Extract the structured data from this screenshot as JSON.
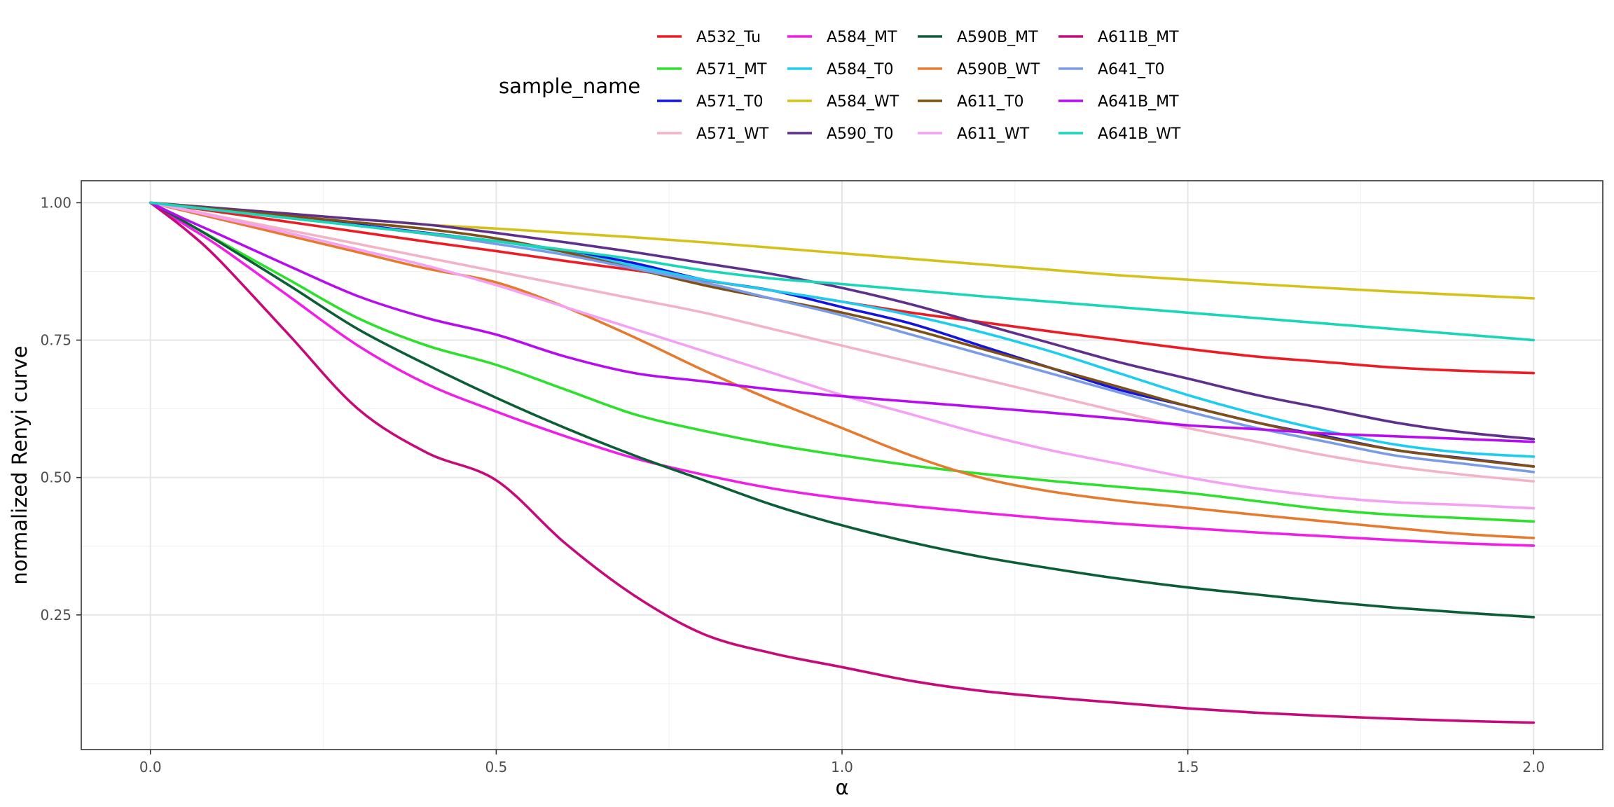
{
  "chart_data": {
    "type": "line",
    "title": "",
    "xlabel": "α",
    "ylabel": "normalized Renyi curve",
    "xlim": [
      -0.1,
      2.1
    ],
    "ylim": [
      0.005,
      1.04
    ],
    "x_ticks": [
      0.0,
      0.5,
      1.0,
      1.5,
      2.0
    ],
    "x_tick_labels": [
      "0.0",
      "0.5",
      "1.0",
      "1.5",
      "2.0"
    ],
    "y_ticks": [
      0.25,
      0.5,
      0.75,
      1.0
    ],
    "y_tick_labels": [
      "0.25",
      "0.50",
      "0.75",
      "1.00"
    ],
    "x_minor_ticks": [
      0.25,
      0.75,
      1.25,
      1.75
    ],
    "y_minor_ticks": [
      0.125,
      0.375,
      0.625,
      0.875
    ],
    "grid": true,
    "legend": {
      "title": "sample_name",
      "position": "top",
      "columns": 4
    },
    "x": [
      0.0,
      0.05,
      0.1,
      0.2,
      0.3,
      0.4,
      0.5,
      0.6,
      0.7,
      0.8,
      0.9,
      1.0,
      1.1,
      1.2,
      1.3,
      1.4,
      1.5,
      1.6,
      1.7,
      1.8,
      1.9,
      2.0
    ],
    "series": [
      {
        "name": "A532_Tu",
        "color": "#ED1C24",
        "values": [
          1.0,
          0.992,
          0.983,
          0.965,
          0.947,
          0.929,
          0.912,
          0.894,
          0.877,
          0.859,
          0.84,
          0.82,
          0.8,
          0.783,
          0.766,
          0.75,
          0.734,
          0.72,
          0.71,
          0.7,
          0.694,
          0.69
        ]
      },
      {
        "name": "A571_MT",
        "color": "#2CE02C",
        "values": [
          1.0,
          0.965,
          0.93,
          0.86,
          0.79,
          0.74,
          0.705,
          0.66,
          0.615,
          0.585,
          0.56,
          0.54,
          0.522,
          0.507,
          0.494,
          0.483,
          0.472,
          0.457,
          0.442,
          0.432,
          0.426,
          0.42
        ]
      },
      {
        "name": "A571_T0",
        "color": "#1414E0",
        "values": [
          1.0,
          0.993,
          0.987,
          0.973,
          0.96,
          0.945,
          0.93,
          0.913,
          0.89,
          0.86,
          0.84,
          0.81,
          0.78,
          0.74,
          0.7,
          0.66,
          0.63,
          0.6,
          0.575,
          0.55,
          0.535,
          0.52
        ]
      },
      {
        "name": "A571_WT",
        "color": "#F2B3C6",
        "values": [
          1.0,
          0.988,
          0.975,
          0.95,
          0.925,
          0.9,
          0.875,
          0.85,
          0.825,
          0.8,
          0.77,
          0.74,
          0.71,
          0.68,
          0.65,
          0.62,
          0.59,
          0.565,
          0.54,
          0.52,
          0.505,
          0.493
        ]
      },
      {
        "name": "A584_MT",
        "color": "#F01EE6",
        "values": [
          1.0,
          0.96,
          0.92,
          0.83,
          0.74,
          0.67,
          0.62,
          0.575,
          0.535,
          0.505,
          0.48,
          0.462,
          0.448,
          0.436,
          0.425,
          0.416,
          0.408,
          0.4,
          0.393,
          0.386,
          0.38,
          0.376
        ]
      },
      {
        "name": "A584_T0",
        "color": "#1CCDF0",
        "values": [
          1.0,
          0.993,
          0.986,
          0.972,
          0.958,
          0.944,
          0.93,
          0.91,
          0.885,
          0.86,
          0.84,
          0.82,
          0.795,
          0.765,
          0.73,
          0.69,
          0.65,
          0.615,
          0.585,
          0.56,
          0.545,
          0.538
        ]
      },
      {
        "name": "A584_WT",
        "color": "#D4C21A",
        "values": [
          1.0,
          0.995,
          0.99,
          0.98,
          0.97,
          0.96,
          0.953,
          0.945,
          0.937,
          0.928,
          0.918,
          0.908,
          0.898,
          0.888,
          0.878,
          0.868,
          0.86,
          0.852,
          0.845,
          0.838,
          0.832,
          0.826
        ]
      },
      {
        "name": "A590_T0",
        "color": "#5E2F8C",
        "values": [
          1.0,
          0.995,
          0.99,
          0.98,
          0.97,
          0.96,
          0.945,
          0.928,
          0.91,
          0.89,
          0.87,
          0.845,
          0.815,
          0.78,
          0.745,
          0.71,
          0.68,
          0.65,
          0.625,
          0.6,
          0.582,
          0.57
        ]
      },
      {
        "name": "A590B_MT",
        "color": "#0B5E36",
        "values": [
          1.0,
          0.965,
          0.928,
          0.85,
          0.77,
          0.705,
          0.645,
          0.59,
          0.54,
          0.495,
          0.45,
          0.413,
          0.382,
          0.356,
          0.335,
          0.316,
          0.3,
          0.287,
          0.274,
          0.263,
          0.254,
          0.246
        ]
      },
      {
        "name": "A590B_WT",
        "color": "#E67A2E",
        "values": [
          1.0,
          0.985,
          0.97,
          0.94,
          0.91,
          0.88,
          0.855,
          0.81,
          0.755,
          0.695,
          0.64,
          0.59,
          0.54,
          0.5,
          0.475,
          0.458,
          0.445,
          0.432,
          0.42,
          0.408,
          0.397,
          0.39
        ]
      },
      {
        "name": "A611_T0",
        "color": "#7F4F15",
        "values": [
          1.0,
          0.994,
          0.988,
          0.976,
          0.964,
          0.952,
          0.935,
          0.91,
          0.88,
          0.85,
          0.825,
          0.8,
          0.77,
          0.735,
          0.7,
          0.665,
          0.63,
          0.6,
          0.573,
          0.55,
          0.534,
          0.52
        ]
      },
      {
        "name": "A611_WT",
        "color": "#F4A0F4",
        "values": [
          1.0,
          0.987,
          0.973,
          0.945,
          0.915,
          0.885,
          0.85,
          0.81,
          0.77,
          0.73,
          0.69,
          0.65,
          0.615,
          0.58,
          0.55,
          0.525,
          0.5,
          0.48,
          0.465,
          0.455,
          0.45,
          0.444
        ]
      },
      {
        "name": "A611B_MT",
        "color": "#C70A7A",
        "values": [
          1.0,
          0.952,
          0.895,
          0.76,
          0.625,
          0.545,
          0.495,
          0.38,
          0.285,
          0.215,
          0.18,
          0.155,
          0.13,
          0.112,
          0.1,
          0.09,
          0.08,
          0.072,
          0.066,
          0.061,
          0.057,
          0.054
        ]
      },
      {
        "name": "A641_T0",
        "color": "#7A9CE8",
        "values": [
          1.0,
          0.993,
          0.986,
          0.972,
          0.958,
          0.943,
          0.925,
          0.905,
          0.88,
          0.855,
          0.825,
          0.795,
          0.76,
          0.725,
          0.69,
          0.655,
          0.62,
          0.59,
          0.565,
          0.54,
          0.525,
          0.51
        ]
      },
      {
        "name": "A641B_MT",
        "color": "#B80CF0",
        "values": [
          1.0,
          0.97,
          0.942,
          0.885,
          0.83,
          0.79,
          0.76,
          0.72,
          0.69,
          0.675,
          0.66,
          0.648,
          0.638,
          0.628,
          0.618,
          0.607,
          0.595,
          0.588,
          0.58,
          0.575,
          0.57,
          0.565
        ]
      },
      {
        "name": "A641B_WT",
        "color": "#19D6B8",
        "values": [
          1.0,
          0.993,
          0.986,
          0.972,
          0.958,
          0.944,
          0.93,
          0.914,
          0.897,
          0.877,
          0.862,
          0.852,
          0.841,
          0.83,
          0.82,
          0.81,
          0.8,
          0.79,
          0.78,
          0.77,
          0.76,
          0.75
        ]
      }
    ]
  }
}
